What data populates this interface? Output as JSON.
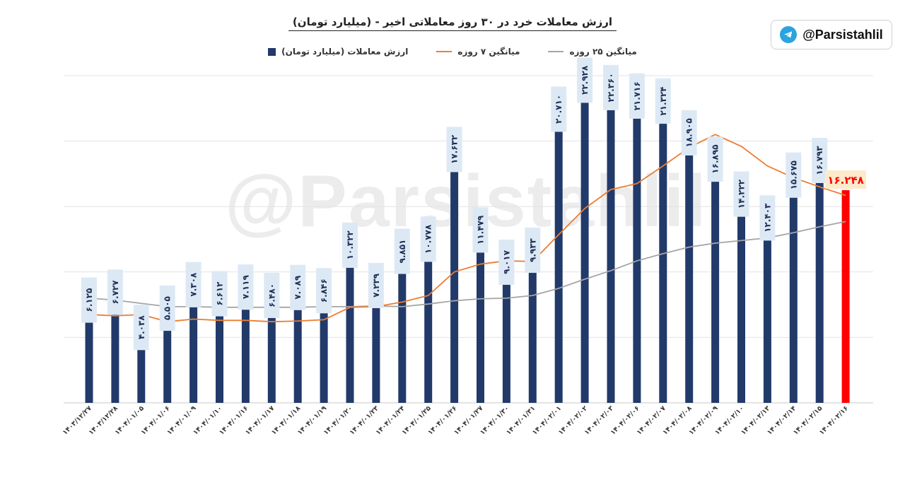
{
  "title": "ارزش معاملات خرد در ۳۰ روز معاملاتی اخیر - (میلیارد تومان)",
  "handle": "@Parsistahlil",
  "watermark": "@Parsistahlil",
  "legend": {
    "avg25": "میانگین ۲۵ روزه",
    "avg7": "میانگین ۷ روزه",
    "value": "ارزش معاملات (میلیارد تومان)"
  },
  "colors": {
    "bar": "#213a6a",
    "highlight": "#ff0000",
    "avg7": "#ed7d31",
    "avg25": "#a5a5a5",
    "label_bg": "#dce9f5"
  },
  "chart_data": {
    "type": "bar",
    "ylim": [
      0,
      25
    ],
    "grid": true,
    "legend_position": "top",
    "categories": [
      "۱۴۰۳/۱۲/۲۷",
      "۱۴۰۳/۱۲/۲۸",
      "۱۴۰۴/۰۱/۰۵",
      "۱۴۰۴/۰۱/۰۶",
      "۱۴۰۴/۰۱/۰۹",
      "۱۴۰۴/۰۱/۱۰",
      "۱۴۰۴/۰۱/۱۶",
      "۱۴۰۴/۰۱/۱۷",
      "۱۴۰۴/۰۱/۱۸",
      "۱۴۰۴/۰۱/۱۹",
      "۱۴۰۴/۰۱/۲۰",
      "۱۴۰۴/۰۱/۲۳",
      "۱۴۰۴/۰۱/۲۴",
      "۱۴۰۴/۰۱/۲۵",
      "۱۴۰۴/۰۱/۲۶",
      "۱۴۰۴/۰۱/۲۷",
      "۱۴۰۴/۰۱/۳۰",
      "۱۴۰۴/۰۱/۳۱",
      "۱۴۰۴/۰۲/۰۱",
      "۱۴۰۴/۰۲/۰۲",
      "۱۴۰۴/۰۲/۰۳",
      "۱۴۰۴/۰۲/۰۶",
      "۱۴۰۴/۰۲/۰۷",
      "۱۴۰۴/۰۲/۰۸",
      "۱۴۰۴/۰۲/۰۹",
      "۱۴۰۴/۰۲/۱۰",
      "۱۴۰۴/۰۲/۱۳",
      "۱۴۰۴/۰۲/۱۴",
      "۱۴۰۴/۰۲/۱۵",
      "۱۴۰۴/۰۲/۱۶"
    ],
    "series": [
      {
        "name": "ارزش معاملات (میلیارد تومان)",
        "values": [
          6.125,
          6.727,
          4.038,
          5.505,
          7.308,
          6.612,
          7.119,
          6.48,
          7.089,
          6.846,
          10.322,
          7.239,
          9.851,
          10.778,
          17.632,
          11.479,
          9.017,
          9.933,
          20.71,
          22.928,
          22.36,
          21.716,
          21.324,
          18.905,
          16.895,
          14.222,
          12.403,
          15.675,
          16.793,
          16.248
        ],
        "labels": [
          "۶.۱۲۵",
          "۶.۷۲۷",
          "۴.۰۳۸",
          "۵.۵۰۵",
          "۷.۳۰۸",
          "۶.۶۱۲",
          "۷.۱۱۹",
          "۶.۴۸۰",
          "۷.۰۸۹",
          "۶.۸۴۶",
          "۱۰.۳۲۲",
          "۷.۲۳۹",
          "۹.۸۵۱",
          "۱۰.۷۷۸",
          "۱۷.۶۳۲",
          "۱۱.۴۷۹",
          "۹.۰۱۷",
          "۹.۹۳۳",
          "۲۰.۷۱۰",
          "۲۲.۹۲۸",
          "۲۲.۳۶۰",
          "۲۱.۷۱۶",
          "۲۱.۳۲۴",
          "۱۸.۹۰۵",
          "۱۶.۸۹۵",
          "۱۴.۲۲۲",
          "۱۲.۴۰۳",
          "۱۵.۶۷۵",
          "۱۶.۷۹۳",
          "۱۶.۲۴۸"
        ]
      },
      {
        "name": "میانگین ۷ روزه",
        "values": [
          6.75,
          6.65,
          6.75,
          6.2,
          6.4,
          6.3,
          6.3,
          6.2,
          6.25,
          6.35,
          7.3,
          7.35,
          7.7,
          8.2,
          10.0,
          10.6,
          10.85,
          10.8,
          12.85,
          14.85,
          16.3,
          16.75,
          18.1,
          19.5,
          20.5,
          19.6,
          18.1,
          17.2,
          16.5,
          15.85
        ]
      },
      {
        "name": "میانگین ۲۵ روزه",
        "values": [
          8.0,
          7.85,
          7.6,
          7.35,
          7.35,
          7.3,
          7.3,
          7.3,
          7.3,
          7.35,
          7.35,
          7.4,
          7.35,
          7.55,
          7.8,
          7.95,
          8.0,
          8.2,
          8.75,
          9.45,
          10.1,
          10.85,
          11.4,
          11.9,
          12.2,
          12.4,
          12.6,
          13.0,
          13.45,
          13.85
        ]
      }
    ]
  }
}
